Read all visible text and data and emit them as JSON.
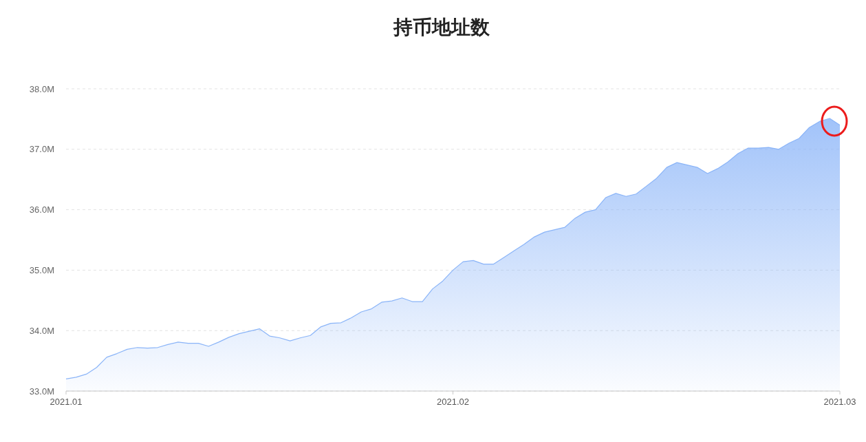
{
  "chart_data": {
    "type": "area",
    "title": "持币地址数",
    "categories": [
      "2021.01",
      null,
      null,
      null,
      null,
      null,
      null,
      null,
      null,
      null,
      null,
      null,
      null,
      null,
      null,
      null,
      null,
      null,
      null,
      null,
      null,
      null,
      null,
      null,
      null,
      null,
      null,
      null,
      null,
      null,
      null,
      null,
      null,
      null,
      null,
      null,
      null,
      null,
      "2021.02",
      null,
      null,
      null,
      null,
      null,
      null,
      null,
      null,
      null,
      null,
      null,
      null,
      null,
      null,
      null,
      null,
      null,
      null,
      null,
      null,
      null,
      null,
      null,
      null,
      null,
      null,
      null,
      null,
      null,
      null,
      null,
      null,
      null,
      null,
      null,
      null,
      null,
      "2021.03"
    ],
    "values": [
      33.2,
      33.23,
      33.28,
      33.39,
      33.56,
      33.62,
      33.69,
      33.72,
      33.71,
      33.72,
      33.77,
      33.81,
      33.79,
      33.79,
      33.74,
      33.81,
      33.89,
      33.95,
      33.99,
      34.03,
      33.91,
      33.88,
      33.83,
      33.88,
      33.92,
      34.06,
      34.12,
      34.13,
      34.21,
      34.31,
      34.36,
      34.47,
      34.49,
      34.54,
      34.48,
      34.48,
      34.69,
      34.82,
      35.0,
      35.14,
      35.16,
      35.1,
      35.1,
      35.21,
      35.32,
      35.43,
      35.55,
      35.63,
      35.67,
      35.71,
      35.86,
      35.96,
      36.0,
      36.2,
      36.27,
      36.22,
      36.26,
      36.39,
      36.52,
      36.7,
      36.78,
      36.74,
      36.7,
      36.6,
      36.68,
      36.79,
      36.93,
      37.02,
      37.02,
      37.03,
      37.0,
      37.1,
      37.18,
      37.36,
      37.46,
      37.51,
      37.4
    ],
    "color": "#8ab4f8",
    "ylim": [
      33,
      38
    ],
    "yticks": [
      {
        "value": 33,
        "label": "33.0M"
      },
      {
        "value": 34,
        "label": "34.0M"
      },
      {
        "value": 35,
        "label": "35.0M"
      },
      {
        "value": 36,
        "label": "36.0M"
      },
      {
        "value": 37,
        "label": "37.0M"
      },
      {
        "value": 38,
        "label": "38.0M"
      }
    ],
    "grid": "y"
  }
}
